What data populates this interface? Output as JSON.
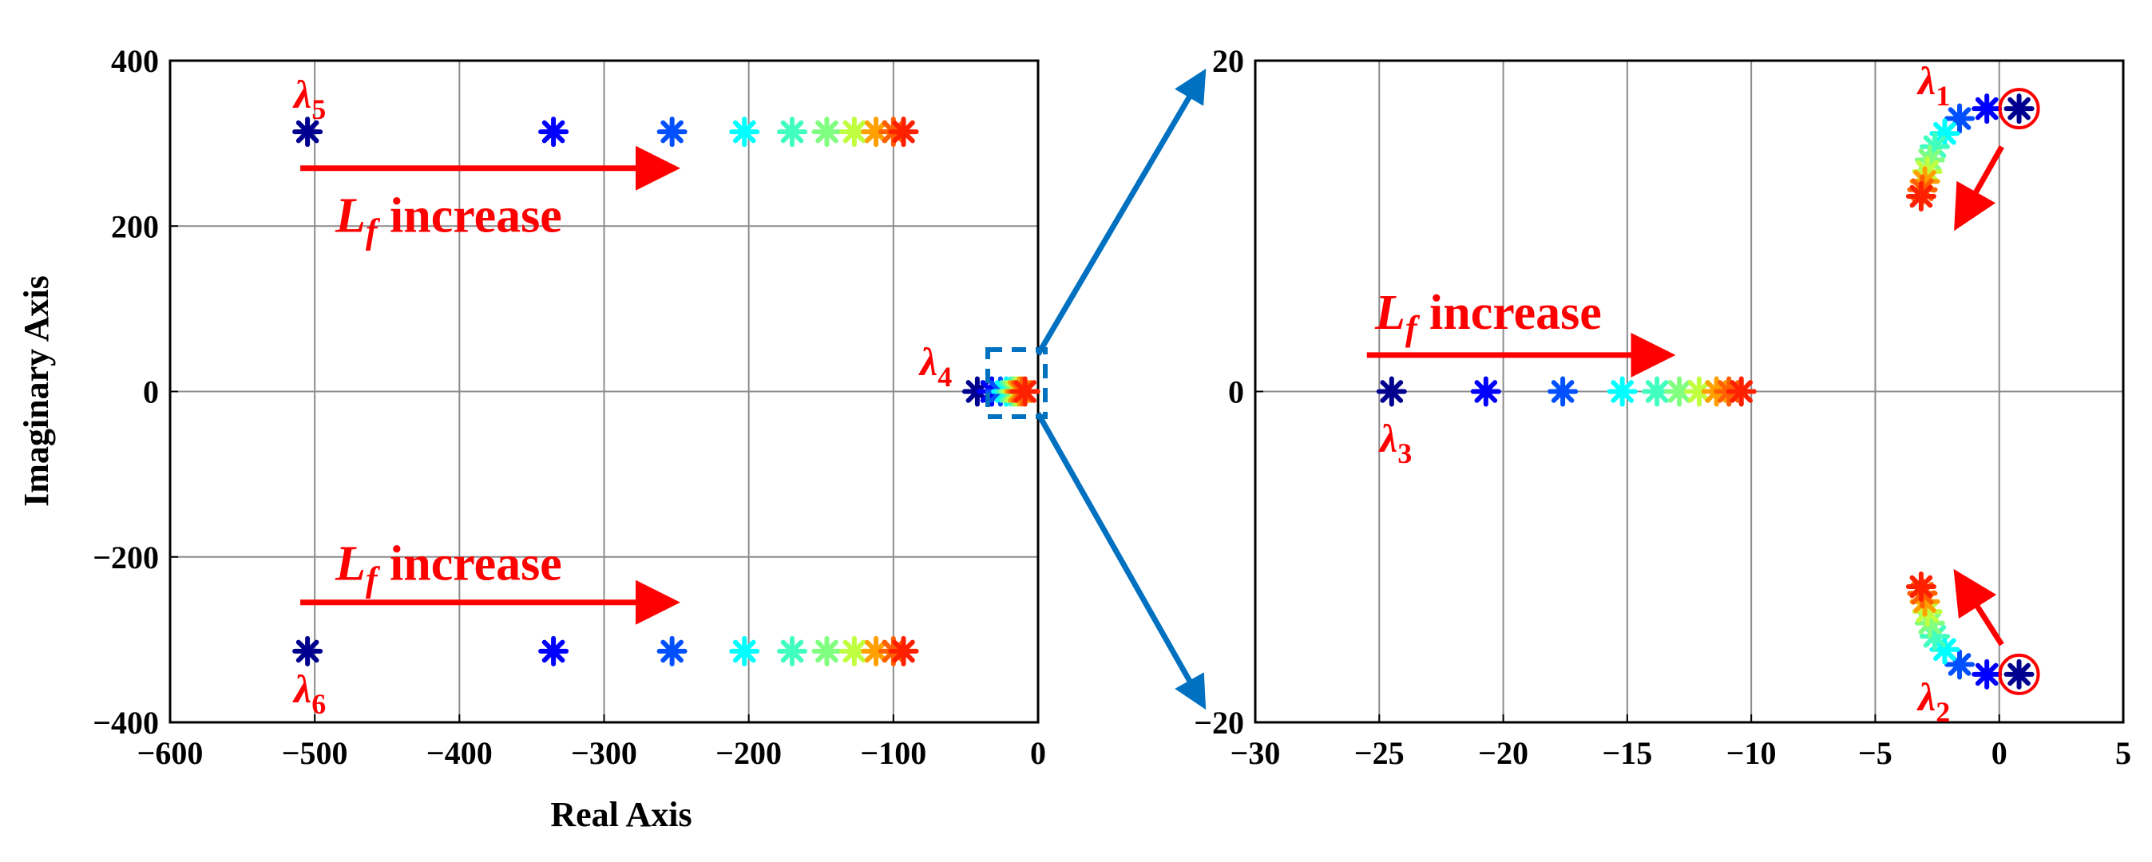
{
  "chart_data": [
    {
      "type": "scatter",
      "name": "full-root-locus",
      "xlabel": "Real Axis",
      "ylabel": "Imaginary Axis",
      "xlim": [
        -600,
        0
      ],
      "ylim": [
        -400,
        400
      ],
      "xticks": [
        -600,
        -500,
        -400,
        -300,
        -200,
        -100,
        0
      ],
      "yticks": [
        -400,
        -200,
        0,
        200,
        400
      ],
      "xtick_labels": [
        "−600",
        "−500",
        "−400",
        "−300",
        "−200",
        "−100",
        "0"
      ],
      "ytick_labels": [
        "−400",
        "−200",
        "0",
        "200",
        "400"
      ],
      "grid": true,
      "color_scale": [
        "#00008f",
        "#0000ff",
        "#0050ff",
        "#00a0ff",
        "#00ffff",
        "#40ffbf",
        "#80ff80",
        "#c0ff40",
        "#ffff00",
        "#ffa000",
        "#ff6000",
        "#ff2000"
      ],
      "series": [
        {
          "label": "λ5",
          "x": [
            -505,
            -335,
            -253,
            -203,
            -170,
            -146,
            -127,
            -112,
            -100,
            -93
          ],
          "y": [
            314,
            314,
            314,
            314,
            314,
            314,
            314,
            314,
            314,
            314
          ]
        },
        {
          "label": "λ6",
          "x": [
            -505,
            -335,
            -253,
            -203,
            -170,
            -146,
            -127,
            -112,
            -100,
            -93
          ],
          "y": [
            -314,
            -314,
            -314,
            -314,
            -314,
            -314,
            -314,
            -314,
            -314,
            -314
          ]
        },
        {
          "label": "λ4",
          "x": [
            -42,
            -32,
            -26,
            -22,
            -19,
            -17,
            -15,
            -13,
            -11,
            -9
          ],
          "y": [
            0,
            0,
            0,
            0,
            0,
            0,
            0,
            0,
            0,
            0
          ]
        }
      ],
      "annotations": [
        {
          "text_main": "L",
          "text_sub": "f",
          "text_rest": " increase",
          "arrow_from": [
            -510,
            270
          ],
          "arrow_to": [
            -255,
            270
          ]
        },
        {
          "text_main": "L",
          "text_sub": "f",
          "text_rest": " increase",
          "arrow_from": [
            -510,
            -255
          ],
          "arrow_to": [
            -255,
            -255
          ]
        }
      ],
      "labels": {
        "l5": "λ",
        "l5s": "5",
        "l6": "λ",
        "l6s": "6",
        "l4": "λ",
        "l4s": "4"
      }
    },
    {
      "type": "scatter",
      "name": "zoomed-root-locus",
      "xlim": [
        -30,
        5
      ],
      "ylim": [
        -20,
        20
      ],
      "xticks": [
        -30,
        -25,
        -20,
        -15,
        -10,
        -5,
        0,
        5
      ],
      "yticks": [
        -20,
        0,
        20
      ],
      "xtick_labels": [
        "−30",
        "−25",
        "−20",
        "−15",
        "−10",
        "−5",
        "0",
        "5"
      ],
      "ytick_labels": [
        "−20",
        "0",
        "20"
      ],
      "grid": true,
      "series": [
        {
          "label": "λ3",
          "x": [
            -24.5,
            -20.7,
            -17.6,
            -15.2,
            -13.8,
            -12.9,
            -12.1,
            -11.4,
            -10.9,
            -10.4
          ],
          "y": [
            0,
            0,
            0,
            0,
            0,
            0,
            0,
            0,
            0,
            0
          ]
        },
        {
          "label": "λ1",
          "x": [
            0.8,
            -0.5,
            -1.6,
            -2.2,
            -2.6,
            -2.8,
            -2.9,
            -3.0,
            -3.1,
            -3.15
          ],
          "y": [
            17.1,
            17.1,
            16.5,
            15.6,
            14.8,
            14.0,
            13.3,
            12.7,
            12.2,
            11.8
          ]
        },
        {
          "label": "λ2",
          "x": [
            0.8,
            -0.5,
            -1.6,
            -2.2,
            -2.6,
            -2.8,
            -2.9,
            -3.0,
            -3.1,
            -3.15
          ],
          "y": [
            -17.1,
            -17.1,
            -16.5,
            -15.6,
            -14.8,
            -14.0,
            -13.3,
            -12.7,
            -12.2,
            -11.8
          ]
        }
      ],
      "annotations": [
        {
          "text_main": "L",
          "text_sub": "f",
          "text_rest": " increase",
          "arrow_from": [
            -25.5,
            2.2
          ],
          "arrow_to": [
            -13.5,
            2.2
          ]
        }
      ],
      "labels": {
        "l1": "λ",
        "l1s": "1",
        "l2": "λ",
        "l2s": "2",
        "l3": "λ",
        "l3s": "3"
      }
    }
  ]
}
